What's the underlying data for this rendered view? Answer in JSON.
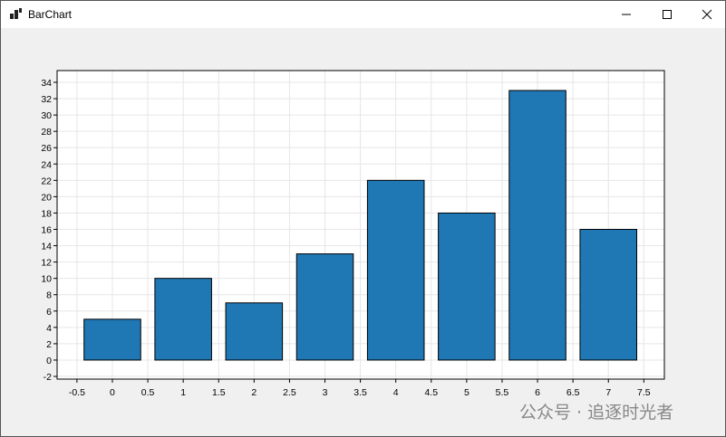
{
  "window": {
    "title": "BarChart"
  },
  "watermark": "公众号 · 追逐时光者",
  "chart_data": {
    "type": "bar",
    "x": [
      0,
      1,
      2,
      3,
      4,
      5,
      6,
      7
    ],
    "values": [
      5,
      10,
      7,
      13,
      22,
      18,
      33,
      16
    ],
    "color": "#1f77b4",
    "bar_width": 0.8,
    "xlim": [
      -0.78,
      7.79
    ],
    "xticks": [
      -0.5,
      0,
      0.5,
      1,
      1.5,
      2,
      2.5,
      3,
      3.5,
      4,
      4.5,
      5,
      5.5,
      6,
      6.5,
      7,
      7.5
    ],
    "ylim": [
      -2.33,
      35.44
    ],
    "yticks": [
      -2,
      0,
      2,
      4,
      6,
      8,
      10,
      12,
      14,
      16,
      18,
      20,
      22,
      24,
      26,
      28,
      30,
      32,
      34
    ],
    "grid": true
  }
}
